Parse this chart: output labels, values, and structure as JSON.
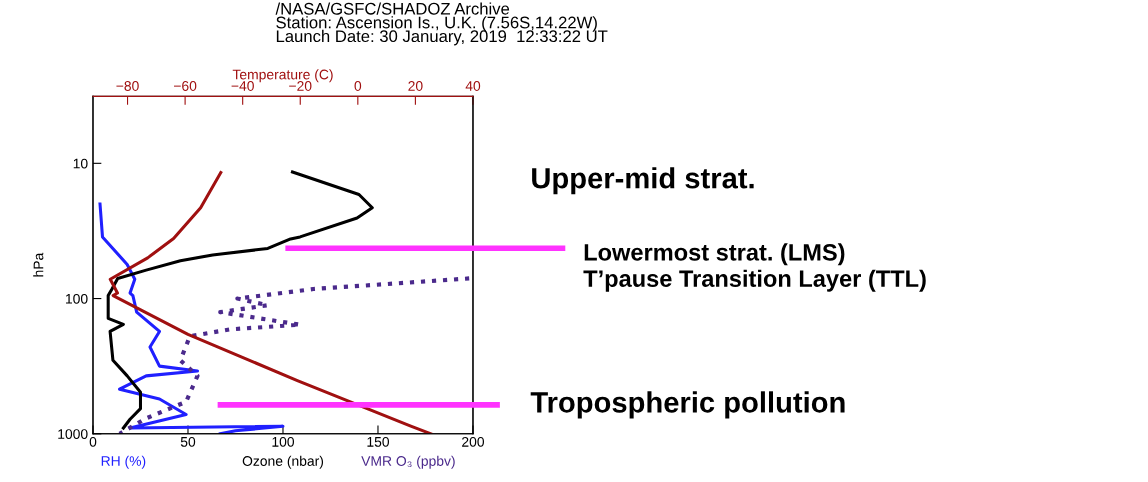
{
  "chart_data": {
    "type": "line",
    "title": "/NASA/GSFC/SHADOZ Archive",
    "subtitle": "Station: Ascension Is., U.K. (7.56S,14.22W)\nLaunch Date: 30 January, 2019  12:33:22 UT",
    "ylabel": "hPa",
    "x2label": "Temperature (C)",
    "log": "y",
    "ylim": [
      1000,
      3.2
    ],
    "yticks": [
      10,
      100,
      1000
    ],
    "xlim": [
      0,
      200
    ],
    "xticks": [
      0,
      50,
      100,
      150,
      200
    ],
    "x2lim": [
      -92,
      40
    ],
    "x2ticks": [
      {
        "value": -80,
        "label": "−80"
      },
      {
        "value": -60,
        "label": "−60"
      },
      {
        "value": -40,
        "label": "−40"
      },
      {
        "value": -20,
        "label": "−20"
      },
      0,
      20,
      40
    ],
    "grid": false,
    "legend": false,
    "series": [
      {
        "name": "RH (%)",
        "color": "#2020ff",
        "line_style": "solid",
        "x": [
          3.7,
          5,
          18,
          22,
          19.5,
          21,
          23,
          35,
          30,
          35,
          55,
          28,
          14,
          35,
          49,
          19.5,
          100,
          75,
          67
        ],
        "values": [
          20,
          35,
          56,
          72,
          91,
          95,
          126,
          175,
          228,
          316,
          343,
          373,
          468,
          553,
          720,
          906,
          880,
          950,
          1000
        ]
      },
      {
        "name": "Ozone (nbar)",
        "color": "#000000",
        "line_style": "solid",
        "x": [
          105,
          140,
          147,
          139,
          109,
          104,
          92,
          63,
          46,
          28,
          13,
          10,
          8,
          8,
          16,
          9,
          10.5,
          18,
          25,
          25,
          19.5,
          16
        ],
        "values": [
          11.6,
          17,
          21.3,
          25.4,
          35,
          36.2,
          42.6,
          47.6,
          52.5,
          61.6,
          71,
          85,
          95,
          140,
          155,
          175,
          286,
          373,
          493,
          652,
          781,
          906
        ]
      },
      {
        "name": "VMR O₃ (ppbv)",
        "color": "#4b2a8c",
        "line_style": "dotted",
        "x": [
          198,
          116,
          76,
          92,
          67,
          109,
          72,
          51,
          46,
          55,
          49,
          28,
          14
        ],
        "values": [
          71,
          85,
          100,
          112,
          126,
          156,
          169,
          190,
          286,
          373,
          580,
          768,
          1000
        ]
      },
      {
        "color": "#a01010",
        "axis": "x2",
        "line_style": "solid",
        "x": [
          -47.6,
          -54.6,
          -64,
          -73,
          -86,
          -83.5,
          -85,
          -59,
          -21,
          18.4,
          25.4
        ],
        "values": [
          11.7,
          21.3,
          36,
          50,
          72,
          91,
          95,
          184,
          404,
          877,
          1000
        ]
      }
    ],
    "annotations": [
      "Upper-mid strat.",
      "Lowermost strat. (LMS)\nT’pause Transition Layer (TTL)",
      "Tropospheric pollution"
    ]
  }
}
